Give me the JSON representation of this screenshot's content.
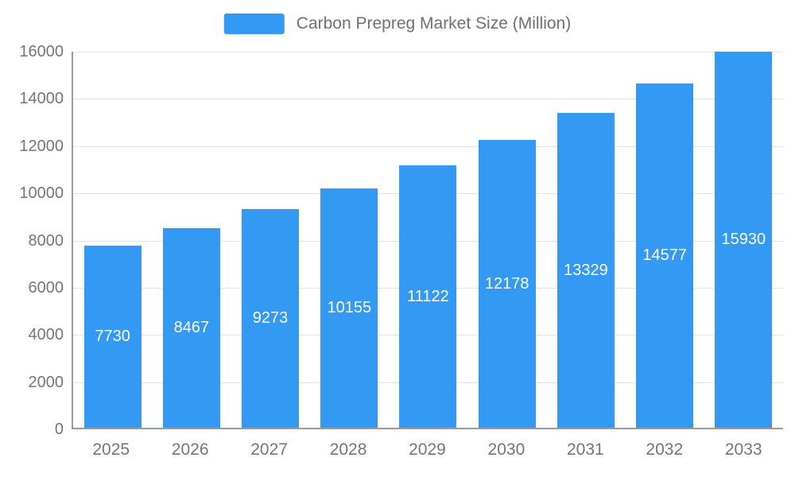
{
  "chart_data": {
    "type": "bar",
    "title": "Carbon Prepreg Market Size (Million)",
    "categories": [
      "2025",
      "2026",
      "2027",
      "2028",
      "2029",
      "2030",
      "2031",
      "2032",
      "2033"
    ],
    "values": [
      7730,
      8467,
      9273,
      10155,
      11122,
      12178,
      13329,
      14577,
      15930
    ],
    "xlabel": "",
    "ylabel": "",
    "ylim": [
      0,
      16000
    ],
    "ytick_step": 2000,
    "grid": true,
    "legend_position": "top-center",
    "value_labels": "inside-center",
    "legend": [
      {
        "label": "Carbon Prepreg Market Size (Million)",
        "color": "#3399f3"
      }
    ],
    "colors": {
      "bar": "#3399f3",
      "axis_text": "#757575",
      "grid_line": "#e3e3e3",
      "axis_line": "#9b9b9b",
      "value_label": "#ffffff",
      "background": "#ffffff"
    }
  }
}
